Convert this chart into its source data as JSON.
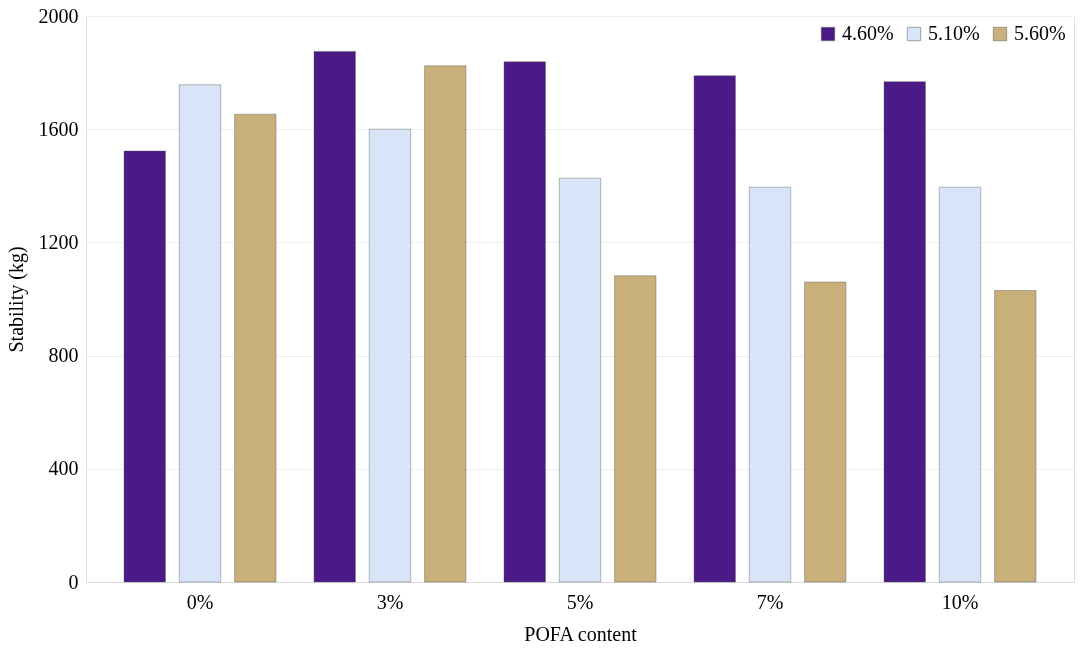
{
  "chart_data": {
    "type": "bar",
    "xlabel": "POFA content",
    "ylabel": "Stability (kg)",
    "categories": [
      "0%",
      "3%",
      "5%",
      "7%",
      "10%"
    ],
    "series": [
      {
        "name": "4.60%",
        "color": "#4b1a86",
        "values": [
          1523,
          1875,
          1838,
          1789,
          1768
        ]
      },
      {
        "name": "5.10%",
        "color": "#d8e4f8",
        "values": [
          1757,
          1600,
          1427,
          1395,
          1395
        ]
      },
      {
        "name": "5.60%",
        "color": "#c9b07a",
        "values": [
          1653,
          1824,
          1082,
          1060,
          1030
        ]
      }
    ],
    "ylim": [
      0,
      2000
    ],
    "yticks": [
      0,
      400,
      800,
      1200,
      1600,
      2000
    ],
    "grid": "y",
    "legend": "top right"
  }
}
